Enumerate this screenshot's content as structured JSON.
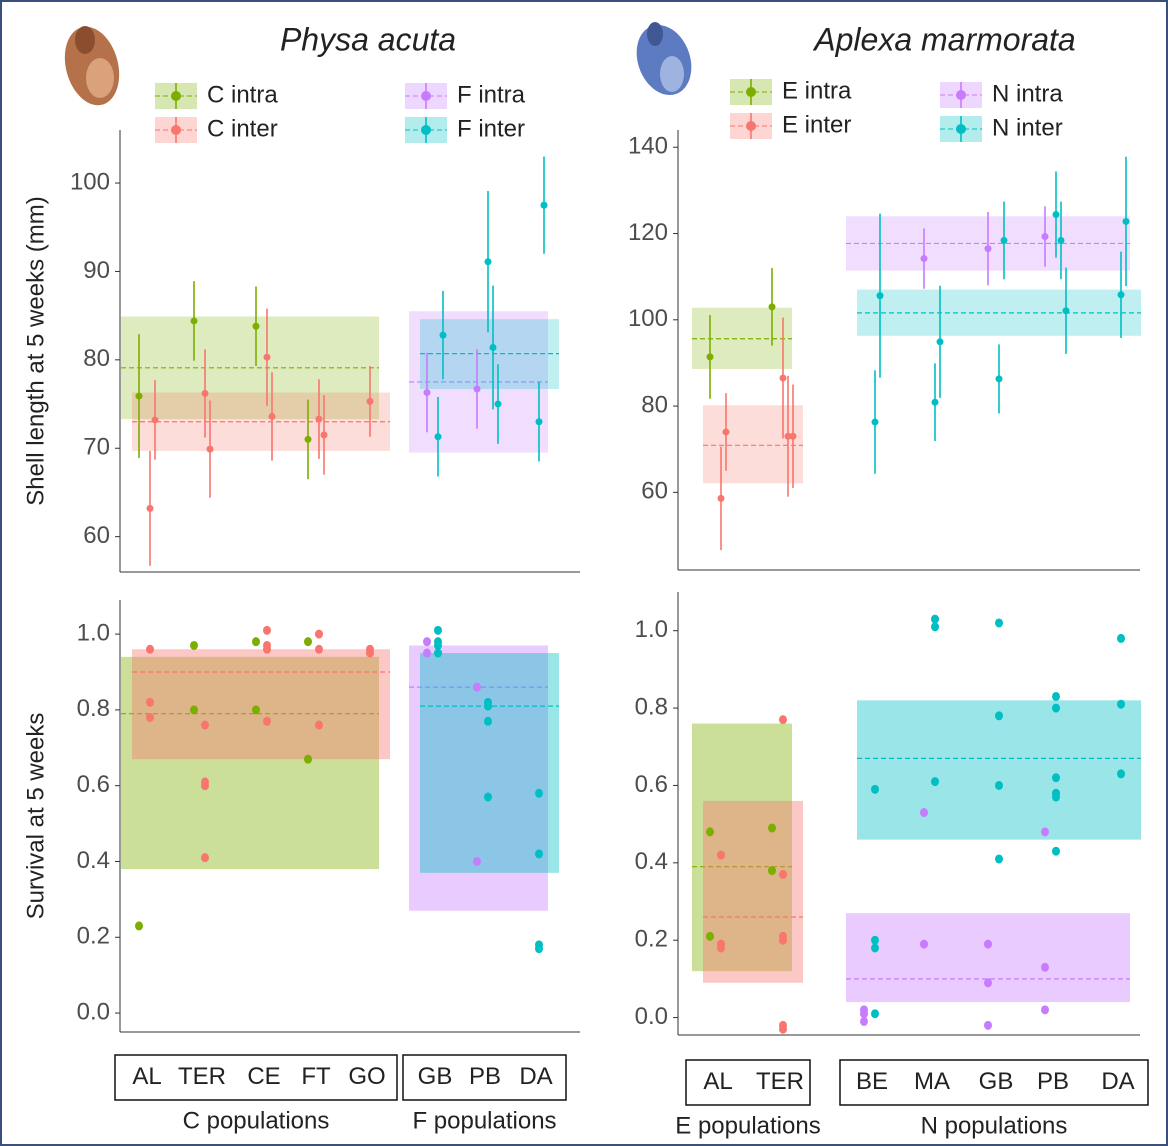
{
  "chart_data": [
    {
      "type": "pointrange",
      "title": "Physa acuta",
      "y_label": "Shell length at 5 weeks (mm)",
      "ylim": [
        56,
        106
      ],
      "yticks": [
        60,
        70,
        80,
        90,
        100
      ],
      "legend": true,
      "series": [
        {
          "name": "C intra",
          "color": "#7cae00",
          "categories": [
            "AL",
            "TER",
            "CE",
            "FT"
          ],
          "values": [
            75.9,
            84.4,
            83.8,
            71.0
          ],
          "errors": [
            7,
            4.5,
            4.5,
            4.5
          ],
          "mean": 79.1,
          "band": [
            73.3,
            84.9
          ]
        },
        {
          "name": "C inter",
          "color": "#f8766d",
          "categories": [
            "AL",
            "AL",
            "TER",
            "TER",
            "CE",
            "CE",
            "FT",
            "FT",
            "GO"
          ],
          "values": [
            63.2,
            73.2,
            76.2,
            69.9,
            80.3,
            73.6,
            73.3,
            71.5,
            75.3
          ],
          "errors": [
            6.5,
            4.5,
            5,
            5.5,
            5.5,
            5,
            4.5,
            4.5,
            4
          ],
          "mean": 73.0,
          "band": [
            69.7,
            76.3
          ]
        },
        {
          "name": "F intra",
          "color": "#c77cff",
          "categories": [
            "GB",
            "PB"
          ],
          "values": [
            76.3,
            76.7
          ],
          "errors": [
            4.5,
            4.5
          ],
          "mean": 77.5,
          "band": [
            69.5,
            85.5
          ]
        },
        {
          "name": "F inter",
          "color": "#00bfc4",
          "categories": [
            "GB",
            "GB",
            "PB",
            "PB",
            "PB",
            "DA",
            "DA"
          ],
          "values": [
            71.3,
            82.8,
            91.1,
            81.4,
            75.0,
            73.0,
            97.5
          ],
          "errors": [
            4.5,
            5,
            8,
            7,
            4.5,
            4.5,
            5.5
          ],
          "mean": 80.7,
          "band": [
            76.7,
            84.6
          ]
        }
      ]
    },
    {
      "type": "strip",
      "y_label": "Survival at 5 weeks",
      "ylim": [
        -0.05,
        1.09
      ],
      "yticks": [
        {
          "value": 0,
          "label": "0.0"
        },
        0.2,
        0.4,
        0.6,
        0.8,
        {
          "value": 1,
          "label": "1.0"
        }
      ],
      "category_groups": [
        {
          "label": "C populations",
          "categories": [
            "AL",
            "TER",
            "CE",
            "FT",
            "GO"
          ]
        },
        {
          "label": "F populations",
          "categories": [
            "GB",
            "PB",
            "DA"
          ]
        }
      ],
      "series": [
        {
          "color": "#7cae00",
          "categories": [
            "AL",
            "TER",
            "TER",
            "CE",
            "CE",
            "FT",
            "FT"
          ],
          "values": [
            0.23,
            0.97,
            0.8,
            0.98,
            0.8,
            0.98,
            0.67
          ],
          "mean": 0.79,
          "band": [
            0.38,
            0.94
          ]
        },
        {
          "color": "#f8766d",
          "categories": [
            "AL",
            "AL",
            "AL",
            "TER",
            "TER",
            "TER",
            "TER",
            "CE",
            "CE",
            "CE",
            "CE",
            "FT",
            "FT",
            "FT",
            "GO",
            "GO"
          ],
          "values": [
            0.96,
            0.82,
            0.78,
            0.76,
            0.61,
            0.6,
            0.41,
            1.01,
            0.97,
            0.96,
            0.77,
            1.0,
            0.96,
            0.76,
            0.96,
            0.95
          ],
          "mean": 0.9,
          "band": [
            0.67,
            0.96
          ]
        },
        {
          "color": "#c77cff",
          "categories": [
            "GB",
            "GB",
            "PB",
            "PB"
          ],
          "values": [
            0.98,
            0.95,
            0.86,
            0.4
          ],
          "mean": 0.86,
          "band": [
            0.27,
            0.97
          ]
        },
        {
          "color": "#00bfc4",
          "categories": [
            "GB",
            "GB",
            "GB",
            "GB",
            "PB",
            "PB",
            "PB",
            "PB",
            "DA",
            "DA",
            "DA",
            "DA"
          ],
          "values": [
            1.01,
            0.98,
            0.97,
            0.95,
            0.82,
            0.81,
            0.77,
            0.57,
            0.58,
            0.42,
            0.18,
            0.17
          ],
          "mean": 0.81,
          "band": [
            0.37,
            0.95
          ]
        }
      ]
    },
    {
      "type": "pointrange",
      "title": "Aplexa marmorata",
      "ylim": [
        42,
        144
      ],
      "yticks": [
        60,
        80,
        100,
        120,
        140
      ],
      "legend": true,
      "series": [
        {
          "name": "E intra",
          "color": "#7cae00",
          "categories": [
            "AL",
            "TER"
          ],
          "values": [
            91.4,
            103.0
          ],
          "errors": [
            9.7,
            9
          ],
          "mean": 95.6,
          "band": [
            88.6,
            102.8
          ]
        },
        {
          "name": "E inter",
          "color": "#f8766d",
          "categories": [
            "AL",
            "AL",
            "TER",
            "TER",
            "TER"
          ],
          "values": [
            58.6,
            74.0,
            86.5,
            73.0,
            73.0
          ],
          "errors": [
            12,
            9,
            14,
            14,
            12
          ],
          "mean": 70.9,
          "band": [
            62.1,
            80.2
          ]
        },
        {
          "name": "N intra",
          "color": "#c77cff",
          "categories": [
            "MA",
            "GB",
            "PB"
          ],
          "values": [
            114.2,
            116.5,
            119.3
          ],
          "errors": [
            7,
            8.5,
            7
          ],
          "mean": 117.7,
          "band": [
            111.4,
            124.0
          ]
        },
        {
          "name": "N inter",
          "color": "#00bfc4",
          "categories": [
            "BE",
            "BE",
            "MA",
            "MA",
            "GB",
            "GB",
            "PB",
            "PB",
            "PB",
            "DA",
            "DA"
          ],
          "values": [
            76.3,
            105.6,
            80.9,
            94.9,
            86.3,
            118.4,
            124.4,
            118.4,
            102.1,
            105.8,
            122.8
          ],
          "errors": [
            12,
            19,
            9,
            13,
            8,
            9,
            10,
            9,
            10,
            10,
            15
          ],
          "mean": 101.6,
          "band": [
            96.3,
            107.0
          ]
        }
      ]
    },
    {
      "type": "strip",
      "ylim": [
        -0.045,
        1.1
      ],
      "yticks": [
        {
          "value": 0,
          "label": "0.0"
        },
        0.2,
        0.4,
        0.6,
        0.8,
        {
          "value": 1,
          "label": "1.0"
        }
      ],
      "category_groups": [
        {
          "label": "E populations",
          "categories": [
            "AL",
            "TER"
          ]
        },
        {
          "label": "N populations",
          "categories": [
            "BE",
            "MA",
            "GB",
            "PB",
            "DA"
          ]
        }
      ],
      "series": [
        {
          "color": "#7cae00",
          "categories": [
            "AL",
            "AL",
            "TER",
            "TER"
          ],
          "values": [
            0.48,
            0.21,
            0.49,
            0.38
          ],
          "mean": 0.39,
          "band": [
            0.12,
            0.76
          ]
        },
        {
          "color": "#f8766d",
          "categories": [
            "AL",
            "AL",
            "AL",
            "TER",
            "TER",
            "TER",
            "TER",
            "TER",
            "TER"
          ],
          "values": [
            0.42,
            0.19,
            0.18,
            0.77,
            0.37,
            0.21,
            0.2,
            -0.02,
            -0.03
          ],
          "mean": 0.26,
          "band": [
            0.09,
            0.56
          ]
        },
        {
          "color": "#c77cff",
          "categories": [
            "BE",
            "BE",
            "BE",
            "MA",
            "MA",
            "GB",
            "GB",
            "GB",
            "PB",
            "PB",
            "PB"
          ],
          "values": [
            0.02,
            0.01,
            -0.01,
            0.53,
            0.19,
            0.19,
            0.09,
            -0.02,
            0.48,
            0.13,
            0.02
          ],
          "mean": 0.1,
          "band": [
            0.04,
            0.27
          ]
        },
        {
          "color": "#00bfc4",
          "categories": [
            "BE",
            "BE",
            "BE",
            "BE",
            "MA",
            "MA",
            "MA",
            "GB",
            "GB",
            "GB",
            "GB",
            "PB",
            "PB",
            "PB",
            "PB",
            "PB",
            "PB",
            "DA",
            "DA",
            "DA"
          ],
          "values": [
            0.59,
            0.2,
            0.18,
            0.01,
            1.03,
            1.01,
            0.61,
            1.02,
            0.78,
            0.6,
            0.41,
            0.83,
            0.8,
            0.62,
            0.58,
            0.57,
            0.43,
            0.98,
            0.81,
            0.63
          ],
          "mean": 0.67,
          "band": [
            0.46,
            0.82
          ]
        }
      ]
    }
  ]
}
